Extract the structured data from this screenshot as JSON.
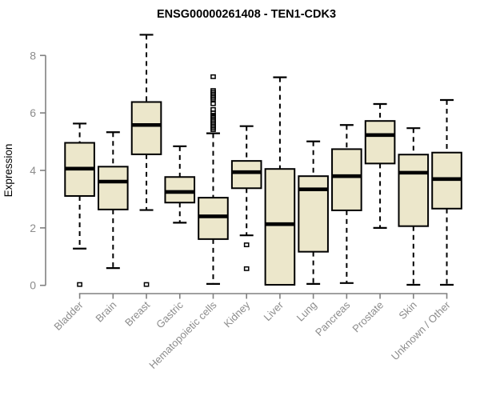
{
  "chart_data": {
    "type": "box",
    "title": "ENSG00000261408 - TEN1-CDK3",
    "ylabel": "Expression",
    "xlabel": "",
    "grid": false,
    "legend": null,
    "ylim": [
      0,
      8.8
    ],
    "y_ticks": [
      0,
      2,
      4,
      6,
      8
    ],
    "categories": [
      "Bladder",
      "Brain",
      "Breast",
      "Gastric",
      "Hematopoietic cells",
      "Kidney",
      "Liver",
      "Lung",
      "Pancreas",
      "Prostate",
      "Skin",
      "Unknown / Other"
    ],
    "boxes": [
      {
        "category": "Bladder",
        "whisker_low": 1.28,
        "q1": 3.11,
        "median": 4.06,
        "q3": 4.96,
        "whisker_high": 5.63,
        "outliers": [
          0.03
        ]
      },
      {
        "category": "Brain",
        "whisker_low": 0.6,
        "q1": 2.64,
        "median": 3.61,
        "q3": 4.13,
        "whisker_high": 5.33,
        "outliers": []
      },
      {
        "category": "Breast",
        "whisker_low": 2.62,
        "q1": 4.56,
        "median": 5.58,
        "q3": 6.38,
        "whisker_high": 8.72,
        "outliers": [
          0.03
        ]
      },
      {
        "category": "Gastric",
        "whisker_low": 2.18,
        "q1": 2.88,
        "median": 3.25,
        "q3": 3.77,
        "whisker_high": 4.84,
        "outliers": []
      },
      {
        "category": "Hematopoietic cells",
        "whisker_low": 0.05,
        "q1": 1.61,
        "median": 2.4,
        "q3": 3.05,
        "whisker_high": 5.29,
        "outliers": [
          5.42,
          5.48,
          5.54,
          5.6,
          5.66,
          5.72,
          5.78,
          5.85,
          5.92,
          6.0,
          6.12,
          6.32,
          6.48,
          6.54,
          6.6,
          6.66,
          6.72,
          6.78,
          7.26
        ]
      },
      {
        "category": "Kidney",
        "whisker_low": 1.74,
        "q1": 3.38,
        "median": 3.94,
        "q3": 4.33,
        "whisker_high": 5.54,
        "outliers": [
          1.41,
          0.58
        ]
      },
      {
        "category": "Liver",
        "whisker_low": 0.02,
        "q1": 0.02,
        "median": 2.13,
        "q3": 4.05,
        "whisker_high": 7.24,
        "outliers": []
      },
      {
        "category": "Lung",
        "whisker_low": 0.05,
        "q1": 1.17,
        "median": 3.34,
        "q3": 3.8,
        "whisker_high": 5.01,
        "outliers": []
      },
      {
        "category": "Pancreas",
        "whisker_low": 0.08,
        "q1": 2.61,
        "median": 3.8,
        "q3": 4.74,
        "whisker_high": 5.58,
        "outliers": []
      },
      {
        "category": "Prostate",
        "whisker_low": 2.0,
        "q1": 4.24,
        "median": 5.23,
        "q3": 5.72,
        "whisker_high": 6.31,
        "outliers": []
      },
      {
        "category": "Skin",
        "whisker_low": 0.02,
        "q1": 2.06,
        "median": 3.92,
        "q3": 4.55,
        "whisker_high": 5.47,
        "outliers": []
      },
      {
        "category": "Unknown / Other",
        "whisker_low": 0.02,
        "q1": 2.67,
        "median": 3.7,
        "q3": 4.62,
        "whisker_high": 6.45,
        "outliers": []
      }
    ],
    "colors": {
      "box_fill": "#ece7cb",
      "box_border": "#000000",
      "median": "#000000",
      "whisker": "#000000",
      "outlier": "#000000",
      "axis": "#808080",
      "tick_label": "#8c8c8c",
      "title": "#000000"
    }
  }
}
